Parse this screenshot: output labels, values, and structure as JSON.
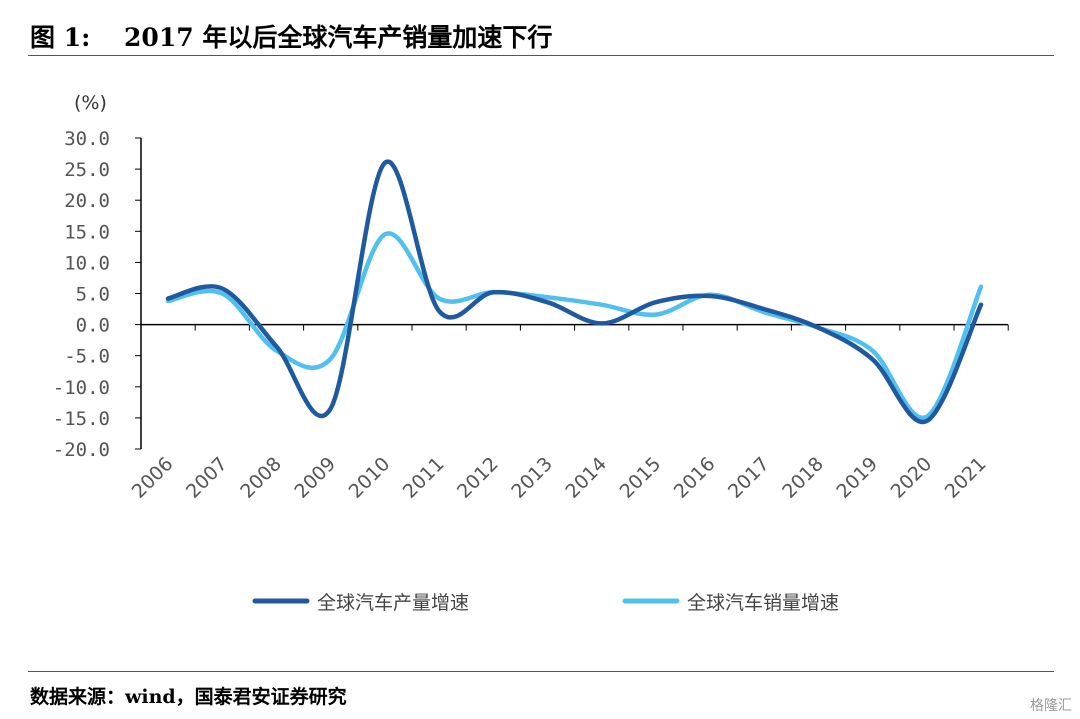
{
  "header": {
    "title": "图 1:　 2017 年以后全球汽车产销量加速下行"
  },
  "footer": {
    "source": "数据来源：wind，国泰君安证券研究",
    "watermark": "格隆汇"
  },
  "chart_data": {
    "type": "line",
    "unit_label": "(%)",
    "categories": [
      "2006",
      "2007",
      "2008",
      "2009",
      "2010",
      "2011",
      "2012",
      "2013",
      "2014",
      "2015",
      "2016",
      "2017",
      "2018",
      "2019",
      "2020",
      "2021"
    ],
    "ylim": [
      -20,
      30
    ],
    "yticks": [
      "30.0",
      "25.0",
      "20.0",
      "15.0",
      "10.0",
      "5.0",
      "0.0",
      "-5.0",
      "-10.0",
      "-15.0",
      "-20.0"
    ],
    "grid": false,
    "legend_position": "bottom",
    "series": [
      {
        "name": "全球汽车产量增速",
        "color": "#1f5aa0",
        "values": [
          4.2,
          5.8,
          -3.5,
          -13.5,
          26.0,
          2.2,
          5.2,
          3.6,
          0.2,
          3.6,
          4.6,
          2.5,
          -0.5,
          -5.6,
          -15.5,
          3.2
        ]
      },
      {
        "name": "全球汽车销量增速",
        "color": "#52c0ee",
        "values": [
          3.8,
          5.0,
          -4.2,
          -5.5,
          14.5,
          4.2,
          5.2,
          4.4,
          3.2,
          1.6,
          4.8,
          2.0,
          -0.5,
          -4.2,
          -14.8,
          6.1
        ]
      }
    ]
  }
}
